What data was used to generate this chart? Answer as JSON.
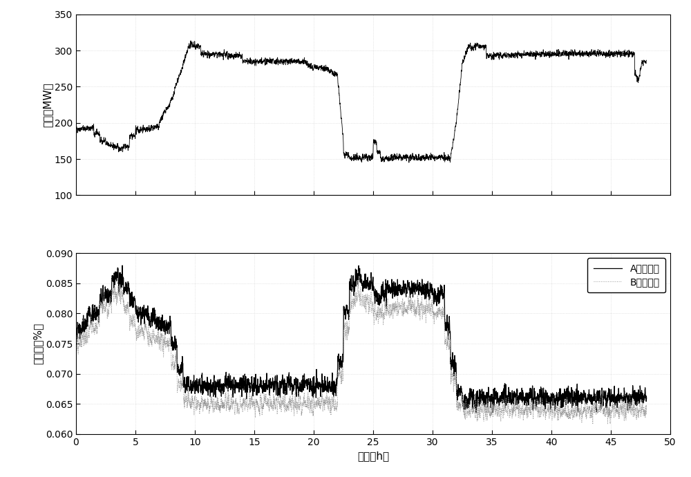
{
  "subplot1_ylabel": "负荷（MW）",
  "subplot2_ylabel": "漏风率（%）",
  "xlabel": "时间（h）",
  "legend_A": "A侧漏风率",
  "legend_B": "B侧漏风率",
  "xlim": [
    0,
    50
  ],
  "ylim1": [
    100,
    350
  ],
  "ylim2": [
    0.06,
    0.09
  ],
  "yticks1": [
    100,
    150,
    200,
    250,
    300,
    350
  ],
  "yticks2": [
    0.06,
    0.065,
    0.07,
    0.075,
    0.08,
    0.085,
    0.09
  ],
  "xticks": [
    0,
    5,
    10,
    15,
    20,
    25,
    30,
    35,
    40,
    45,
    50
  ],
  "line_color_A": "#000000",
  "line_color_B": "#999999",
  "bg_color": "#ffffff",
  "grid_color": "#d0d0d0",
  "noise_seed": 42
}
